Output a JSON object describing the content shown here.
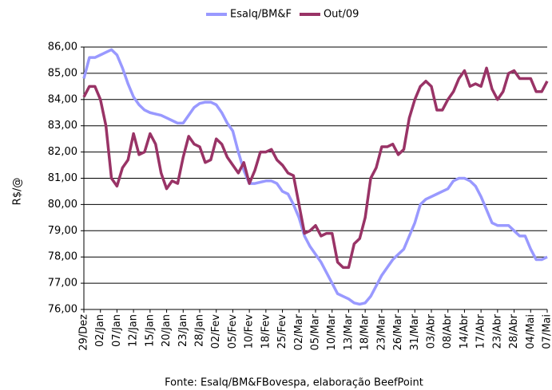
{
  "chart_data": {
    "type": "line",
    "y_label": "R$/@",
    "source": "Fonte: Esalq/BM&FBovespa, elaboração BeefPoint",
    "categories": [
      "29/Dez",
      null,
      null,
      "02/Jan",
      null,
      null,
      "07/Jan",
      null,
      null,
      "12/Jan",
      null,
      null,
      "15/Jan",
      null,
      null,
      "20/Jan",
      null,
      null,
      "23/Jan",
      null,
      null,
      "28/Jan",
      null,
      null,
      "02/Fev",
      null,
      null,
      "05/Fev",
      null,
      null,
      "10/Fev",
      null,
      null,
      "18/Fev",
      null,
      null,
      "25/Fev",
      null,
      null,
      "02/Mar",
      null,
      null,
      "05/Mar",
      null,
      null,
      "10/Mar",
      null,
      null,
      "13/Mar",
      null,
      null,
      "18/Mar",
      null,
      null,
      "23/Mar",
      null,
      null,
      "26/Mar",
      null,
      null,
      "31/Mar",
      null,
      null,
      "03/Abr",
      null,
      null,
      "08/Abr",
      null,
      null,
      "14/Abr",
      null,
      null,
      "17/Abr",
      null,
      null,
      "23/Abr",
      null,
      null,
      "28/Abr",
      null,
      null,
      "04/Mai",
      null,
      null,
      "07/Mai"
    ],
    "series": [
      {
        "name": "Esalq/BM&F",
        "color": "#9999ff",
        "values": [
          84.8,
          85.6,
          85.6,
          85.7,
          85.8,
          85.9,
          85.7,
          85.2,
          84.6,
          84.1,
          83.8,
          83.6,
          83.5,
          83.45,
          83.4,
          83.3,
          83.2,
          83.1,
          83.1,
          83.4,
          83.7,
          83.85,
          83.9,
          83.9,
          83.8,
          83.5,
          83.1,
          82.8,
          82.0,
          81.3,
          80.8,
          80.8,
          80.85,
          80.9,
          80.9,
          80.8,
          80.5,
          80.4,
          80.0,
          79.5,
          78.8,
          78.4,
          78.1,
          77.8,
          77.4,
          77.0,
          76.6,
          76.5,
          76.4,
          76.25,
          76.2,
          76.25,
          76.5,
          76.9,
          77.3,
          77.6,
          77.9,
          78.1,
          78.3,
          78.8,
          79.3,
          80.0,
          80.2,
          80.3,
          80.4,
          80.5,
          80.6,
          80.9,
          81.0,
          81.0,
          80.9,
          80.7,
          80.3,
          79.8,
          79.3,
          79.2,
          79.2,
          79.2,
          79.0,
          78.8,
          78.8,
          78.3,
          77.9,
          77.9,
          78.0
        ]
      },
      {
        "name": "Out/09",
        "color": "#993366",
        "values": [
          84.1,
          84.5,
          84.5,
          84.0,
          83.0,
          81.0,
          80.7,
          81.4,
          81.7,
          82.7,
          81.9,
          82.0,
          82.7,
          82.3,
          81.2,
          80.6,
          80.9,
          80.8,
          81.8,
          82.6,
          82.3,
          82.2,
          81.6,
          81.7,
          82.5,
          82.3,
          81.8,
          81.5,
          81.2,
          81.6,
          80.8,
          81.3,
          82.0,
          82.0,
          82.1,
          81.7,
          81.5,
          81.2,
          81.1,
          80.0,
          78.9,
          79.0,
          79.2,
          78.8,
          78.9,
          78.9,
          77.8,
          77.6,
          77.6,
          78.5,
          78.7,
          79.5,
          81.0,
          81.4,
          82.2,
          82.2,
          82.3,
          81.9,
          82.1,
          83.3,
          84.0,
          84.5,
          84.7,
          84.5,
          83.6,
          83.6,
          84.0,
          84.3,
          84.8,
          85.1,
          84.5,
          84.6,
          84.5,
          85.2,
          84.4,
          84.0,
          84.3,
          85.0,
          85.1,
          84.8,
          84.8,
          84.8,
          84.3,
          84.3,
          84.7
        ]
      }
    ],
    "ylim": [
      76,
      86
    ],
    "yticks": [
      {
        "value": 76,
        "label": "76,00"
      },
      {
        "value": 77,
        "label": "77,00"
      },
      {
        "value": 78,
        "label": "78,00"
      },
      {
        "value": 79,
        "label": "79,00"
      },
      {
        "value": 80,
        "label": "80,00"
      },
      {
        "value": 81,
        "label": "81,00"
      },
      {
        "value": 82,
        "label": "82,00"
      },
      {
        "value": 83,
        "label": "83,00"
      },
      {
        "value": 84,
        "label": "84,00"
      },
      {
        "value": 85,
        "label": "85,00"
      },
      {
        "value": 86,
        "label": "86,00"
      }
    ],
    "grid": true,
    "legend": "top"
  }
}
